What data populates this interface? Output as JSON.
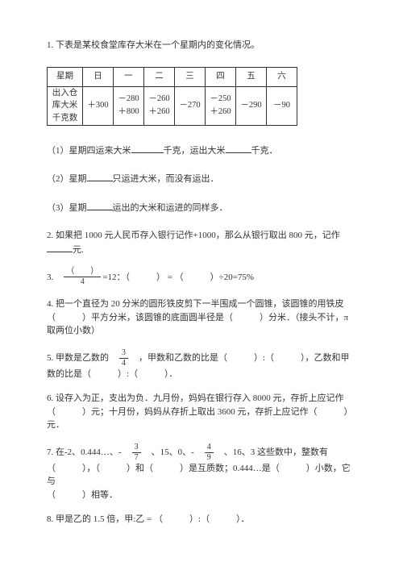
{
  "q1": {
    "intro": "1. 下表是某校食堂库存大米在一个星期内的变化情况。",
    "table": {
      "header_label": "星期",
      "days": [
        "日",
        "一",
        "二",
        "三",
        "四",
        "五",
        "六"
      ],
      "row_label_l1": "出入仓",
      "row_label_l2": "库大米",
      "row_label_l3": "千克数",
      "cells": [
        {
          "top": "",
          "bot": "＋300"
        },
        {
          "top": "－280",
          "bot": "＋800"
        },
        {
          "top": "－260",
          "bot": "＋260"
        },
        {
          "top": "－270",
          "bot": ""
        },
        {
          "top": "－250",
          "bot": "＋260"
        },
        {
          "top": "－290",
          "bot": ""
        },
        {
          "top": "－90",
          "bot": ""
        }
      ]
    },
    "sub1_a": "（1）星期四运来大米",
    "sub1_b": "千克，运出大米",
    "sub1_c": "千克．",
    "sub2_a": "（2）星期",
    "sub2_b": "只运进大米，而没有运出．",
    "sub3_a": "（3）星期",
    "sub3_b": "运出的大米和运进的同样多．"
  },
  "q2": {
    "a": "2. 如果把 1000 元人民币存入银行记作+1000，那么从银行取出 800 元，记作",
    "b": "元."
  },
  "q3": {
    "prefix": "3.　",
    "paren_l": "（　　）",
    "frac_den": "4",
    "mid": " =12：（　　　） = （　　　）÷20=75%"
  },
  "q4": {
    "l1": "4. 把一个直径为 20 分米的圆形铁皮剪下一半围成一个圆锥，该圆锥的用铁皮",
    "l2": "（　　　）平方分米，该圆锥的底面圆半径是（　　　）分米．（接头不计，π",
    "l3": "取两位小数）"
  },
  "q5": {
    "l1_a": "5. 甲数是乙数的　",
    "frac_num": "3",
    "frac_den": "4",
    "l1_b": "　，甲数和乙数的比是（　　　）:（　　　），乙数和甲",
    "l2": "数的比是（　　　）:（　　　）．"
  },
  "q6": {
    "l1": "6. 设存入为正，支出为负．九月份，妈妈在银行存入 8000 元，存折上应记作",
    "l2": "（　　　）元；十月份，妈妈从存折上取出 3600 元，存折上应记作（　　　）",
    "l3": "元．"
  },
  "q7": {
    "l1_a": "7. 在-2、0.444…、-　",
    "f1n": "3",
    "f1d": "7",
    "l1_b": "　、15、0、-　",
    "f2n": "4",
    "f2d": "9",
    "l1_c": "　、16、3 这些数中，整数有",
    "l2": "（　　　），（　　　）和（　　　）是互质数；0.444…是（　　　）小数，它与",
    "l3": "（　　　）相等．"
  },
  "q8": "8. 甲是乙的 1.5 倍，甲:乙 = （　　　）:（　　　）．"
}
